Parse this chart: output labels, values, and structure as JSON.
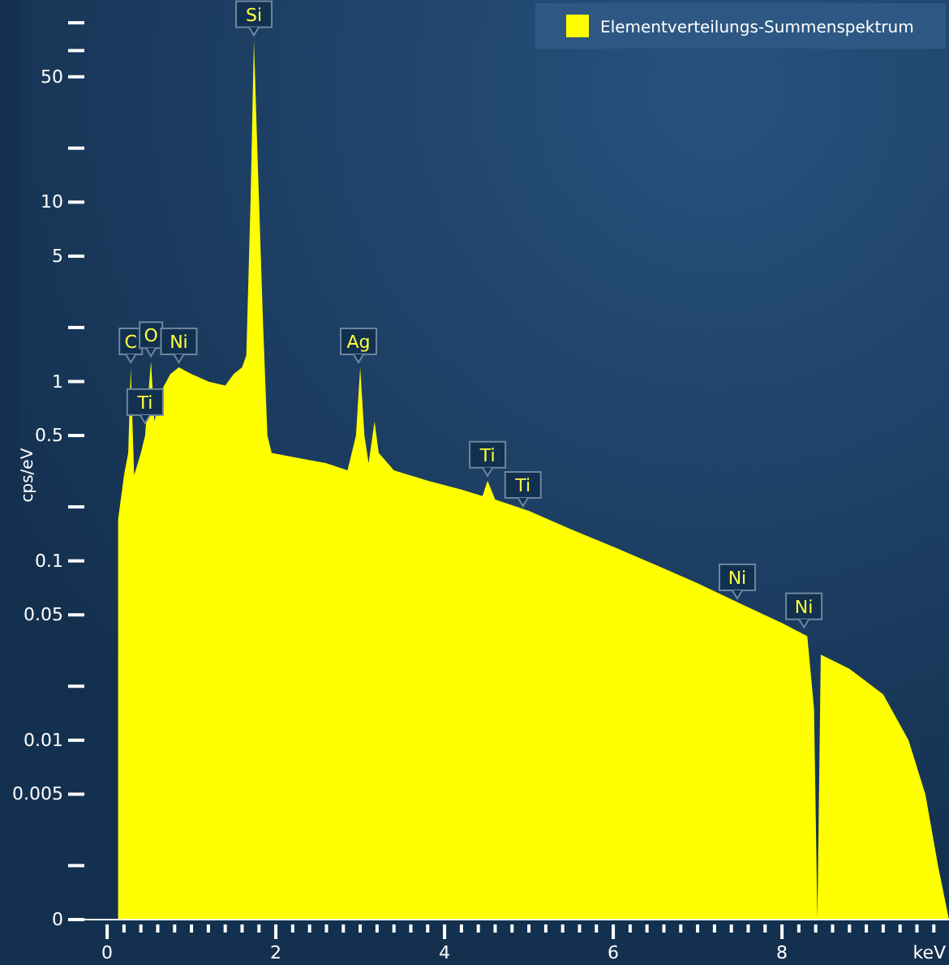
{
  "chart_data": {
    "type": "area",
    "xlabel": "keV",
    "ylabel": "cps/eV",
    "log": true,
    "legend": "top right",
    "xlim": [
      -0.27,
      9.98
    ],
    "ylim": [
      0.001,
      134
    ],
    "xticks": [
      0,
      {
        "value": 0.2,
        "label": null
      },
      {
        "value": 0.4,
        "label": null
      },
      {
        "value": 0.6,
        "label": null
      },
      {
        "value": 0.8,
        "label": null
      },
      {
        "value": 1,
        "label": null
      },
      {
        "value": 1.2,
        "label": null
      },
      {
        "value": 1.4,
        "label": null
      },
      {
        "value": 1.6,
        "label": null
      },
      {
        "value": 1.8,
        "label": null
      },
      2,
      {
        "value": 2.2,
        "label": null
      },
      {
        "value": 2.4,
        "label": null
      },
      {
        "value": 2.6,
        "label": null
      },
      {
        "value": 2.8,
        "label": null
      },
      {
        "value": 3,
        "label": null
      },
      {
        "value": 3.2,
        "label": null
      },
      {
        "value": 3.4,
        "label": null
      },
      {
        "value": 3.6,
        "label": null
      },
      {
        "value": 3.8,
        "label": null
      },
      4,
      {
        "value": 4.2,
        "label": null
      },
      {
        "value": 4.4,
        "label": null
      },
      {
        "value": 4.6,
        "label": null
      },
      {
        "value": 4.8,
        "label": null
      },
      {
        "value": 5,
        "label": null
      },
      {
        "value": 5.2,
        "label": null
      },
      {
        "value": 5.4,
        "label": null
      },
      {
        "value": 5.6,
        "label": null
      },
      {
        "value": 5.8,
        "label": null
      },
      6,
      {
        "value": 6.2,
        "label": null
      },
      {
        "value": 6.4,
        "label": null
      },
      {
        "value": 6.6,
        "label": null
      },
      {
        "value": 6.8,
        "label": null
      },
      {
        "value": 7,
        "label": null
      },
      {
        "value": 7.2,
        "label": null
      },
      {
        "value": 7.4,
        "label": null
      },
      {
        "value": 7.6,
        "label": null
      },
      {
        "value": 7.8,
        "label": null
      },
      8,
      {
        "value": 8.2,
        "label": null
      },
      {
        "value": 8.4,
        "label": null
      },
      {
        "value": 8.6,
        "label": null
      },
      {
        "value": 8.8,
        "label": null
      },
      {
        "value": 9,
        "label": null
      },
      {
        "value": 9.2,
        "label": null
      },
      {
        "value": 9.4,
        "label": null
      },
      {
        "value": 9.6,
        "label": null
      },
      {
        "value": 9.8,
        "label": null
      }
    ],
    "yticks": [
      {
        "value": 0.001,
        "label": "0"
      },
      {
        "value": 0.002,
        "label": null
      },
      0.005,
      0.01,
      {
        "value": 0.02,
        "label": null
      },
      0.05,
      0.1,
      {
        "value": 0.2,
        "label": null
      },
      0.5,
      1,
      {
        "value": 2,
        "label": null
      },
      5,
      10,
      {
        "value": 20,
        "label": null
      },
      50,
      {
        "value": 70,
        "label": null
      },
      {
        "value": 100,
        "label": null
      }
    ],
    "annotations": [
      {
        "text": "C",
        "x": 0.28,
        "y": 1.2
      },
      {
        "text": "Ti",
        "x": 0.45,
        "y": 0.55
      },
      {
        "text": "O",
        "x": 0.52,
        "y": 1.3
      },
      {
        "text": "Ni",
        "x": 0.85,
        "y": 1.2
      },
      {
        "text": "Si",
        "x": 1.74,
        "y": 80
      },
      {
        "text": "Ag",
        "x": 2.98,
        "y": 1.2
      },
      {
        "text": "Ti",
        "x": 4.51,
        "y": 0.28
      },
      {
        "text": "Ti",
        "x": 4.93,
        "y": 0.19
      },
      {
        "text": "Ni",
        "x": 7.47,
        "y": 0.058
      },
      {
        "text": "Ni",
        "x": 8.26,
        "y": 0.04
      }
    ],
    "series": [
      {
        "name": "Elementverteilungs-Summenspektrum",
        "color": "#ffff00",
        "x": [
          0.13,
          0.2,
          0.25,
          0.28,
          0.32,
          0.4,
          0.45,
          0.52,
          0.56,
          0.65,
          0.75,
          0.85,
          1.0,
          1.2,
          1.4,
          1.5,
          1.6,
          1.65,
          1.7,
          1.74,
          1.78,
          1.85,
          1.9,
          1.95,
          2.2,
          2.6,
          2.85,
          2.95,
          3.0,
          3.05,
          3.1,
          3.17,
          3.22,
          3.4,
          3.8,
          4.2,
          4.45,
          4.51,
          4.6,
          5.0,
          5.5,
          6.0,
          6.5,
          7.0,
          7.5,
          8.0,
          8.3,
          8.38,
          8.42,
          8.46,
          8.8,
          9.2,
          9.5,
          9.7,
          9.85,
          9.98
        ],
        "values": [
          0.17,
          0.3,
          0.4,
          1.2,
          0.3,
          0.4,
          0.5,
          1.3,
          0.6,
          0.9,
          1.1,
          1.2,
          1.1,
          1.0,
          0.95,
          1.1,
          1.2,
          1.4,
          10,
          80,
          20,
          2,
          0.5,
          0.4,
          0.38,
          0.35,
          0.32,
          0.5,
          1.2,
          0.5,
          0.35,
          0.6,
          0.4,
          0.32,
          0.28,
          0.25,
          0.23,
          0.28,
          0.22,
          0.19,
          0.15,
          0.12,
          0.095,
          0.075,
          0.058,
          0.045,
          0.038,
          0.015,
          0.001,
          0.03,
          0.025,
          0.018,
          0.01,
          0.005,
          0.002,
          0.001
        ]
      }
    ]
  }
}
